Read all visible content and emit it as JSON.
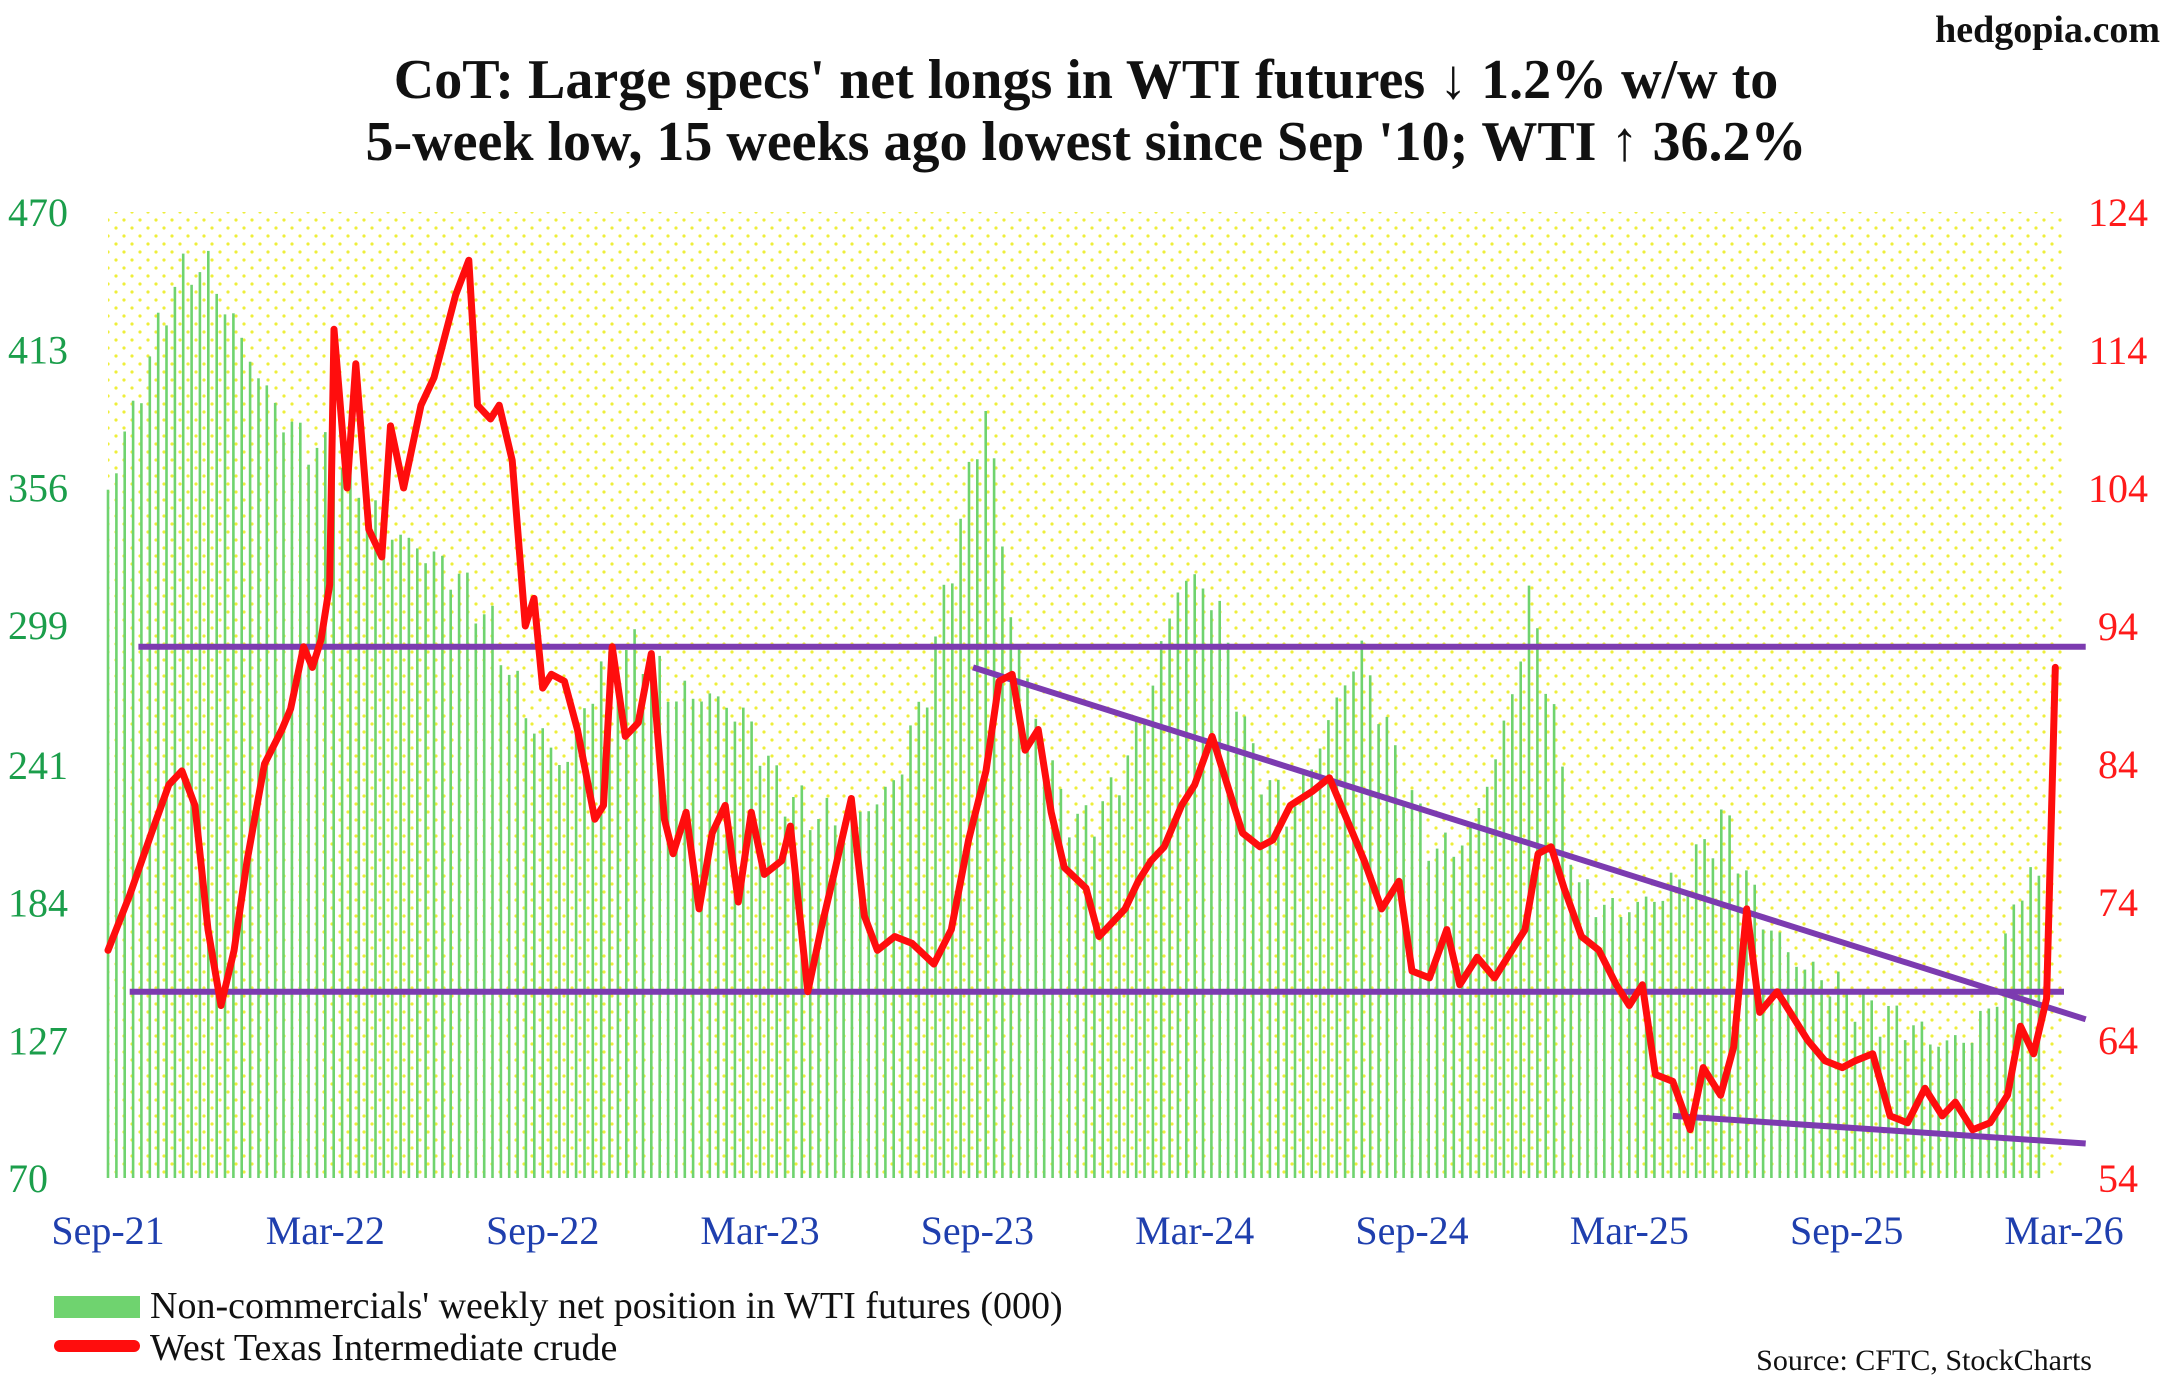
{
  "site": "hedgopia.com",
  "title_lines": [
    "CoT: Large specs' net longs in WTI futures ↓ 1.2% w/w to",
    "5-week low, 15 weeks ago lowest since Sep '10; WTI ↑ 36.2%"
  ],
  "source": "Source: CFTC, StockCharts",
  "colors": {
    "bars": "#6fd36f",
    "wti": "#ff0d0d",
    "trend": "#7c3bb0",
    "left_axis": "#1b9e4b",
    "right_axis": "#ff1a1a",
    "x_axis": "#1f3fae",
    "dots": "#f2f24a"
  },
  "chart_data": {
    "type": "bar+line",
    "left_axis": {
      "ylim": [
        70,
        470
      ],
      "ticks": [
        "470",
        "413",
        "356",
        "299",
        "241",
        "184",
        "127",
        "70"
      ]
    },
    "right_axis": {
      "ylim": [
        54,
        124
      ],
      "ticks": [
        "124",
        "114",
        "104",
        "94",
        "84",
        "74",
        "64",
        "54"
      ]
    },
    "x_ticks": [
      "Sep-21",
      "Mar-22",
      "Sep-22",
      "Mar-23",
      "Sep-23",
      "Mar-24",
      "Sep-24",
      "Mar-25",
      "Sep-25",
      "Mar-26"
    ],
    "x_range": [
      2021.7,
      2026.2
    ],
    "grid": "dotted background",
    "legend_position": "bottom-left",
    "series": [
      {
        "name": "Non-commercials' weekly net position in WTI futures (000)",
        "type": "bar",
        "axis": "left",
        "anchors": [
          [
            2021.7,
            355
          ],
          [
            2021.78,
            400
          ],
          [
            2021.85,
            440
          ],
          [
            2021.92,
            450
          ],
          [
            2022.0,
            420
          ],
          [
            2022.08,
            390
          ],
          [
            2022.15,
            375
          ],
          [
            2022.25,
            365
          ],
          [
            2022.33,
            340
          ],
          [
            2022.42,
            330
          ],
          [
            2022.5,
            320
          ],
          [
            2022.58,
            300
          ],
          [
            2022.67,
            260
          ],
          [
            2022.75,
            240
          ],
          [
            2022.83,
            280
          ],
          [
            2022.92,
            290
          ],
          [
            2023.0,
            270
          ],
          [
            2023.08,
            270
          ],
          [
            2023.17,
            260
          ],
          [
            2023.25,
            230
          ],
          [
            2023.33,
            220
          ],
          [
            2023.42,
            220
          ],
          [
            2023.5,
            230
          ],
          [
            2023.58,
            270
          ],
          [
            2023.67,
            350
          ],
          [
            2023.72,
            390
          ],
          [
            2023.78,
            300
          ],
          [
            2023.85,
            250
          ],
          [
            2023.92,
            215
          ],
          [
            2024.0,
            225
          ],
          [
            2024.08,
            260
          ],
          [
            2024.17,
            320
          ],
          [
            2024.25,
            310
          ],
          [
            2024.33,
            245
          ],
          [
            2024.42,
            220
          ],
          [
            2024.5,
            255
          ],
          [
            2024.58,
            290
          ],
          [
            2024.67,
            240
          ],
          [
            2024.75,
            205
          ],
          [
            2024.83,
            210
          ],
          [
            2024.92,
            260
          ],
          [
            2024.97,
            310
          ],
          [
            2025.02,
            270
          ],
          [
            2025.08,
            190
          ],
          [
            2025.17,
            180
          ],
          [
            2025.25,
            185
          ],
          [
            2025.33,
            195
          ],
          [
            2025.42,
            220
          ],
          [
            2025.5,
            180
          ],
          [
            2025.58,
            160
          ],
          [
            2025.67,
            150
          ],
          [
            2025.75,
            140
          ],
          [
            2025.83,
            135
          ],
          [
            2025.92,
            125
          ],
          [
            2026.0,
            130
          ],
          [
            2026.05,
            150
          ],
          [
            2026.1,
            195
          ],
          [
            2026.15,
            190
          ]
        ]
      },
      {
        "name": "West Texas Intermediate crude",
        "type": "line",
        "axis": "right",
        "points": [
          [
            2021.7,
            70.5
          ],
          [
            2021.75,
            74.5
          ],
          [
            2021.8,
            79
          ],
          [
            2021.84,
            82.5
          ],
          [
            2021.87,
            83.5
          ],
          [
            2021.9,
            81
          ],
          [
            2021.93,
            72
          ],
          [
            2021.96,
            66.5
          ],
          [
            2021.99,
            70.5
          ],
          [
            2022.02,
            77
          ],
          [
            2022.06,
            84
          ],
          [
            2022.1,
            86.5
          ],
          [
            2022.12,
            88
          ],
          [
            2022.15,
            92.5
          ],
          [
            2022.17,
            91
          ],
          [
            2022.19,
            93
          ],
          [
            2022.21,
            97
          ],
          [
            2022.22,
            115.5
          ],
          [
            2022.25,
            104
          ],
          [
            2022.27,
            113
          ],
          [
            2022.3,
            101
          ],
          [
            2022.33,
            99
          ],
          [
            2022.35,
            108.5
          ],
          [
            2022.38,
            104
          ],
          [
            2022.42,
            110
          ],
          [
            2022.45,
            112
          ],
          [
            2022.5,
            118
          ],
          [
            2022.53,
            120.5
          ],
          [
            2022.55,
            110
          ],
          [
            2022.58,
            109
          ],
          [
            2022.6,
            110
          ],
          [
            2022.63,
            106
          ],
          [
            2022.66,
            94
          ],
          [
            2022.68,
            96
          ],
          [
            2022.7,
            89.5
          ],
          [
            2022.72,
            90.5
          ],
          [
            2022.75,
            90
          ],
          [
            2022.78,
            86.5
          ],
          [
            2022.82,
            80
          ],
          [
            2022.84,
            81
          ],
          [
            2022.86,
            92.5
          ],
          [
            2022.89,
            86
          ],
          [
            2022.92,
            87
          ],
          [
            2022.95,
            92
          ],
          [
            2022.98,
            80
          ],
          [
            2023.0,
            77.5
          ],
          [
            2023.03,
            80.5
          ],
          [
            2023.06,
            73.5
          ],
          [
            2023.09,
            79
          ],
          [
            2023.12,
            81
          ],
          [
            2023.15,
            74
          ],
          [
            2023.18,
            80.5
          ],
          [
            2023.21,
            76
          ],
          [
            2023.25,
            77
          ],
          [
            2023.27,
            79.5
          ],
          [
            2023.31,
            67.5
          ],
          [
            2023.34,
            72
          ],
          [
            2023.37,
            76
          ],
          [
            2023.41,
            81.5
          ],
          [
            2023.44,
            73
          ],
          [
            2023.47,
            70.5
          ],
          [
            2023.51,
            71.5
          ],
          [
            2023.55,
            71
          ],
          [
            2023.6,
            69.5
          ],
          [
            2023.64,
            72
          ],
          [
            2023.68,
            78.5
          ],
          [
            2023.72,
            83.5
          ],
          [
            2023.75,
            90
          ],
          [
            2023.78,
            90.5
          ],
          [
            2023.81,
            85
          ],
          [
            2023.84,
            86.5
          ],
          [
            2023.87,
            80.5
          ],
          [
            2023.9,
            76.5
          ],
          [
            2023.95,
            75
          ],
          [
            2023.98,
            71.5
          ],
          [
            2024.01,
            72.5
          ],
          [
            2024.04,
            73.5
          ],
          [
            2024.07,
            75.5
          ],
          [
            2024.1,
            77
          ],
          [
            2024.13,
            78
          ],
          [
            2024.17,
            81
          ],
          [
            2024.2,
            82.5
          ],
          [
            2024.24,
            86
          ],
          [
            2024.27,
            83
          ],
          [
            2024.31,
            79
          ],
          [
            2024.35,
            78
          ],
          [
            2024.38,
            78.5
          ],
          [
            2024.42,
            81
          ],
          [
            2024.47,
            82
          ],
          [
            2024.51,
            83
          ],
          [
            2024.55,
            80
          ],
          [
            2024.59,
            77
          ],
          [
            2024.63,
            73.5
          ],
          [
            2024.67,
            75.5
          ],
          [
            2024.7,
            69
          ],
          [
            2024.74,
            68.5
          ],
          [
            2024.78,
            72
          ],
          [
            2024.81,
            68
          ],
          [
            2024.85,
            70
          ],
          [
            2024.89,
            68.5
          ],
          [
            2024.92,
            70
          ],
          [
            2024.96,
            72
          ],
          [
            2024.99,
            77.5
          ],
          [
            2025.02,
            78
          ],
          [
            2025.05,
            75
          ],
          [
            2025.09,
            71.5
          ],
          [
            2025.13,
            70.5
          ],
          [
            2025.17,
            68
          ],
          [
            2025.2,
            66.5
          ],
          [
            2025.23,
            68
          ],
          [
            2025.26,
            61.5
          ],
          [
            2025.3,
            61
          ],
          [
            2025.34,
            57.5
          ],
          [
            2025.37,
            62
          ],
          [
            2025.41,
            60
          ],
          [
            2025.44,
            63.5
          ],
          [
            2025.47,
            73.5
          ],
          [
            2025.5,
            66
          ],
          [
            2025.54,
            67.5
          ],
          [
            2025.57,
            66
          ],
          [
            2025.61,
            64
          ],
          [
            2025.65,
            62.5
          ],
          [
            2025.69,
            62
          ],
          [
            2025.72,
            62.5
          ],
          [
            2025.76,
            63
          ],
          [
            2025.8,
            58.5
          ],
          [
            2025.84,
            58
          ],
          [
            2025.88,
            60.5
          ],
          [
            2025.92,
            58.5
          ],
          [
            2025.95,
            59.5
          ],
          [
            2025.99,
            57.5
          ],
          [
            2026.03,
            58
          ],
          [
            2026.07,
            60
          ],
          [
            2026.1,
            65
          ],
          [
            2026.13,
            63
          ],
          [
            2026.16,
            67
          ],
          [
            2026.18,
            91
          ]
        ]
      }
    ],
    "trend_lines": [
      {
        "axis": "right",
        "from": [
          2021.77,
          92.5
        ],
        "to": [
          2026.25,
          92.5
        ]
      },
      {
        "axis": "right",
        "from": [
          2021.75,
          67.5
        ],
        "to": [
          2026.2,
          67.5
        ]
      },
      {
        "axis": "right",
        "from": [
          2023.69,
          91
        ],
        "to": [
          2026.25,
          65.5
        ]
      },
      {
        "axis": "right",
        "from": [
          2025.3,
          58.5
        ],
        "to": [
          2026.25,
          56.5
        ]
      }
    ]
  }
}
